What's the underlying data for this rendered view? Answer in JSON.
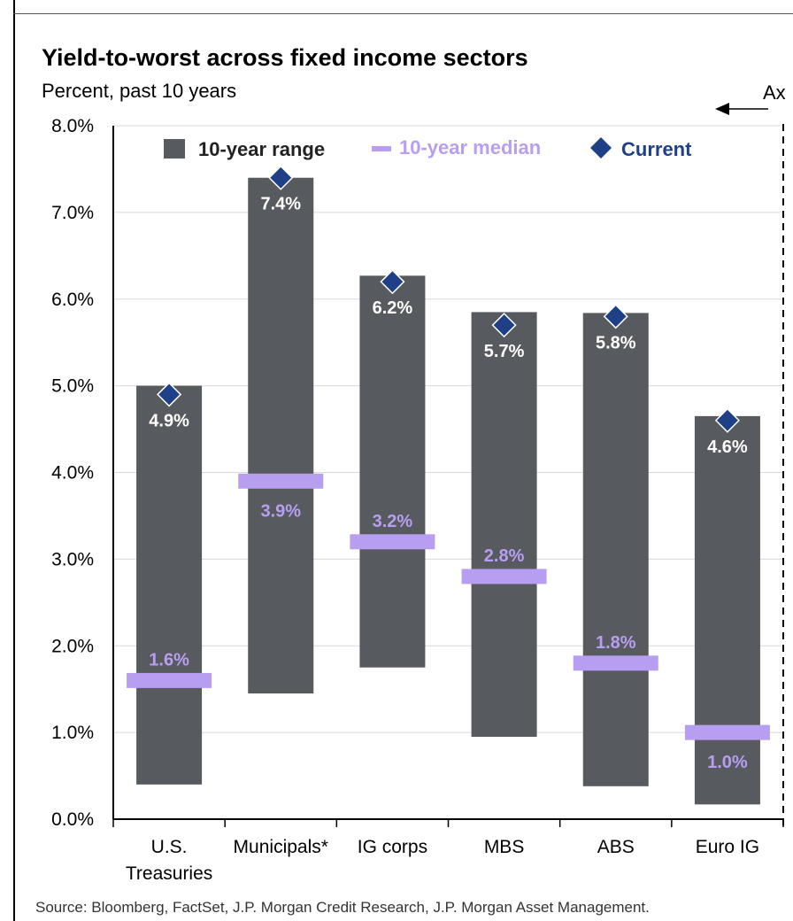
{
  "header": {
    "title": "Yield-to-worst across fixed income sectors",
    "subtitle": "Percent, past 10 years",
    "side_label": "Ax"
  },
  "footer": {
    "source": "Source: Bloomberg, FactSet, J.P. Morgan Credit Research, J.P. Morgan Asset Management."
  },
  "colors": {
    "range": "#575a5e",
    "median": "#b89ef0",
    "current": "#1f3f87",
    "grid": "#d8d8d8"
  },
  "chart_data": {
    "type": "bar",
    "subtype": "floating-range",
    "ylim": [
      0,
      8
    ],
    "yticks": [
      "0.0%",
      "1.0%",
      "2.0%",
      "3.0%",
      "4.0%",
      "5.0%",
      "6.0%",
      "7.0%",
      "8.0%"
    ],
    "grid": true,
    "legend": {
      "placement": "top-center",
      "items": [
        {
          "key": "range",
          "label": "10-year range"
        },
        {
          "key": "median",
          "label": "10-year median"
        },
        {
          "key": "current",
          "label": "Current"
        }
      ]
    },
    "categories": [
      {
        "lines": [
          "U.S.",
          "Treasuries"
        ],
        "min": 0.4,
        "max": 5.0,
        "median": 1.6,
        "current": 4.9,
        "median_label": "1.6%",
        "current_label": "4.9%",
        "median_label_pos": "above"
      },
      {
        "lines": [
          "Municipals*"
        ],
        "min": 1.45,
        "max": 7.4,
        "median": 3.9,
        "current": 7.4,
        "median_label": "3.9%",
        "current_label": "7.4%",
        "median_label_pos": "below"
      },
      {
        "lines": [
          "IG corps"
        ],
        "min": 1.75,
        "max": 6.27,
        "median": 3.2,
        "current": 6.2,
        "median_label": "3.2%",
        "current_label": "6.2%",
        "median_label_pos": "above"
      },
      {
        "lines": [
          "MBS"
        ],
        "min": 0.95,
        "max": 5.85,
        "median": 2.8,
        "current": 5.7,
        "median_label": "2.8%",
        "current_label": "5.7%",
        "median_label_pos": "above"
      },
      {
        "lines": [
          "ABS"
        ],
        "min": 0.38,
        "max": 5.84,
        "median": 1.8,
        "current": 5.8,
        "median_label": "1.8%",
        "current_label": "5.8%",
        "median_label_pos": "above"
      },
      {
        "lines": [
          "Euro IG"
        ],
        "min": 0.17,
        "max": 4.65,
        "median": 1.0,
        "current": 4.6,
        "median_label": "1.0%",
        "current_label": "4.6%",
        "median_label_pos": "below"
      }
    ]
  }
}
